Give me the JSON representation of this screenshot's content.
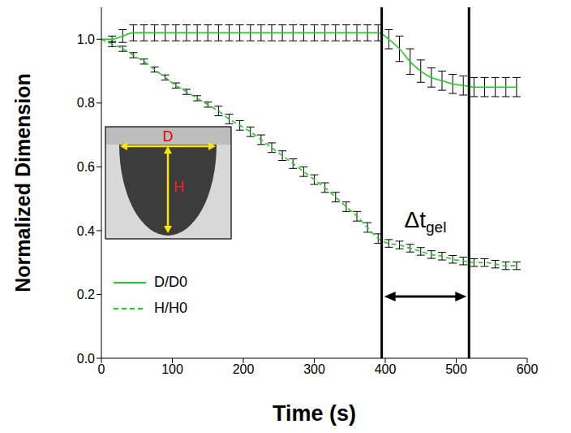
{
  "chart_data": {
    "type": "line",
    "x_label": "Time (s)",
    "y_label": "Normalized Dimension",
    "x": [
      0,
      15,
      30,
      45,
      60,
      75,
      90,
      105,
      120,
      135,
      150,
      165,
      180,
      195,
      210,
      225,
      240,
      255,
      270,
      285,
      300,
      315,
      330,
      345,
      360,
      375,
      390,
      405,
      420,
      435,
      450,
      465,
      480,
      495,
      510,
      525,
      540,
      555,
      570,
      585
    ],
    "series": [
      {
        "name": "D/D0",
        "color": "#22cc22",
        "line_style": "solid",
        "values": [
          1.0,
          1.0,
          1.01,
          1.02,
          1.02,
          1.02,
          1.02,
          1.02,
          1.02,
          1.02,
          1.02,
          1.02,
          1.02,
          1.02,
          1.02,
          1.02,
          1.02,
          1.02,
          1.02,
          1.02,
          1.02,
          1.02,
          1.02,
          1.02,
          1.02,
          1.02,
          1.02,
          1.0,
          0.97,
          0.93,
          0.9,
          0.88,
          0.87,
          0.86,
          0.855,
          0.85,
          0.85,
          0.85,
          0.85,
          0.85
        ],
        "errors": [
          0,
          0.01,
          0.02,
          0.025,
          0.025,
          0.025,
          0.025,
          0.025,
          0.025,
          0.025,
          0.025,
          0.025,
          0.025,
          0.025,
          0.025,
          0.025,
          0.025,
          0.025,
          0.025,
          0.025,
          0.025,
          0.025,
          0.025,
          0.025,
          0.025,
          0.025,
          0.025,
          0.03,
          0.04,
          0.04,
          0.035,
          0.03,
          0.03,
          0.03,
          0.03,
          0.03,
          0.03,
          0.03,
          0.03,
          0.03
        ]
      },
      {
        "name": "H/H0",
        "color": "#22cc22",
        "line_style": "dashed",
        "values": [
          1.0,
          0.985,
          0.97,
          0.95,
          0.93,
          0.905,
          0.88,
          0.855,
          0.835,
          0.815,
          0.795,
          0.775,
          0.75,
          0.73,
          0.71,
          0.685,
          0.66,
          0.635,
          0.61,
          0.585,
          0.56,
          0.535,
          0.505,
          0.475,
          0.445,
          0.41,
          0.375,
          0.36,
          0.355,
          0.345,
          0.335,
          0.325,
          0.32,
          0.31,
          0.305,
          0.3,
          0.3,
          0.295,
          0.29,
          0.29
        ],
        "errors": [
          0,
          0.008,
          0.008,
          0.008,
          0.008,
          0.008,
          0.008,
          0.008,
          0.008,
          0.008,
          0.008,
          0.015,
          0.015,
          0.015,
          0.015,
          0.015,
          0.015,
          0.015,
          0.015,
          0.015,
          0.015,
          0.015,
          0.015,
          0.015,
          0.015,
          0.015,
          0.015,
          0.012,
          0.012,
          0.012,
          0.012,
          0.012,
          0.012,
          0.012,
          0.012,
          0.012,
          0.012,
          0.012,
          0.012,
          0.012
        ]
      }
    ],
    "xlim": [
      0,
      600
    ],
    "xticks": [
      0,
      100,
      200,
      300,
      400,
      500,
      600
    ],
    "ylim": [
      0,
      1.1
    ],
    "yticks": [
      {
        "value": 0,
        "label": "0.0"
      },
      {
        "value": 0.2,
        "label": "0.2"
      },
      {
        "value": 0.4,
        "label": "0.4"
      },
      {
        "value": 0.6,
        "label": "0.6"
      },
      {
        "value": 0.8,
        "label": "0.8"
      },
      {
        "value": 1.0,
        "label": "1.0"
      }
    ],
    "legend": "lower left",
    "annotations": [
      {
        "text": "Δt",
        "subscript": "gel",
        "x_start": 395,
        "x_end": 518
      }
    ],
    "inset": {
      "labels": [
        "D",
        "H"
      ]
    }
  }
}
